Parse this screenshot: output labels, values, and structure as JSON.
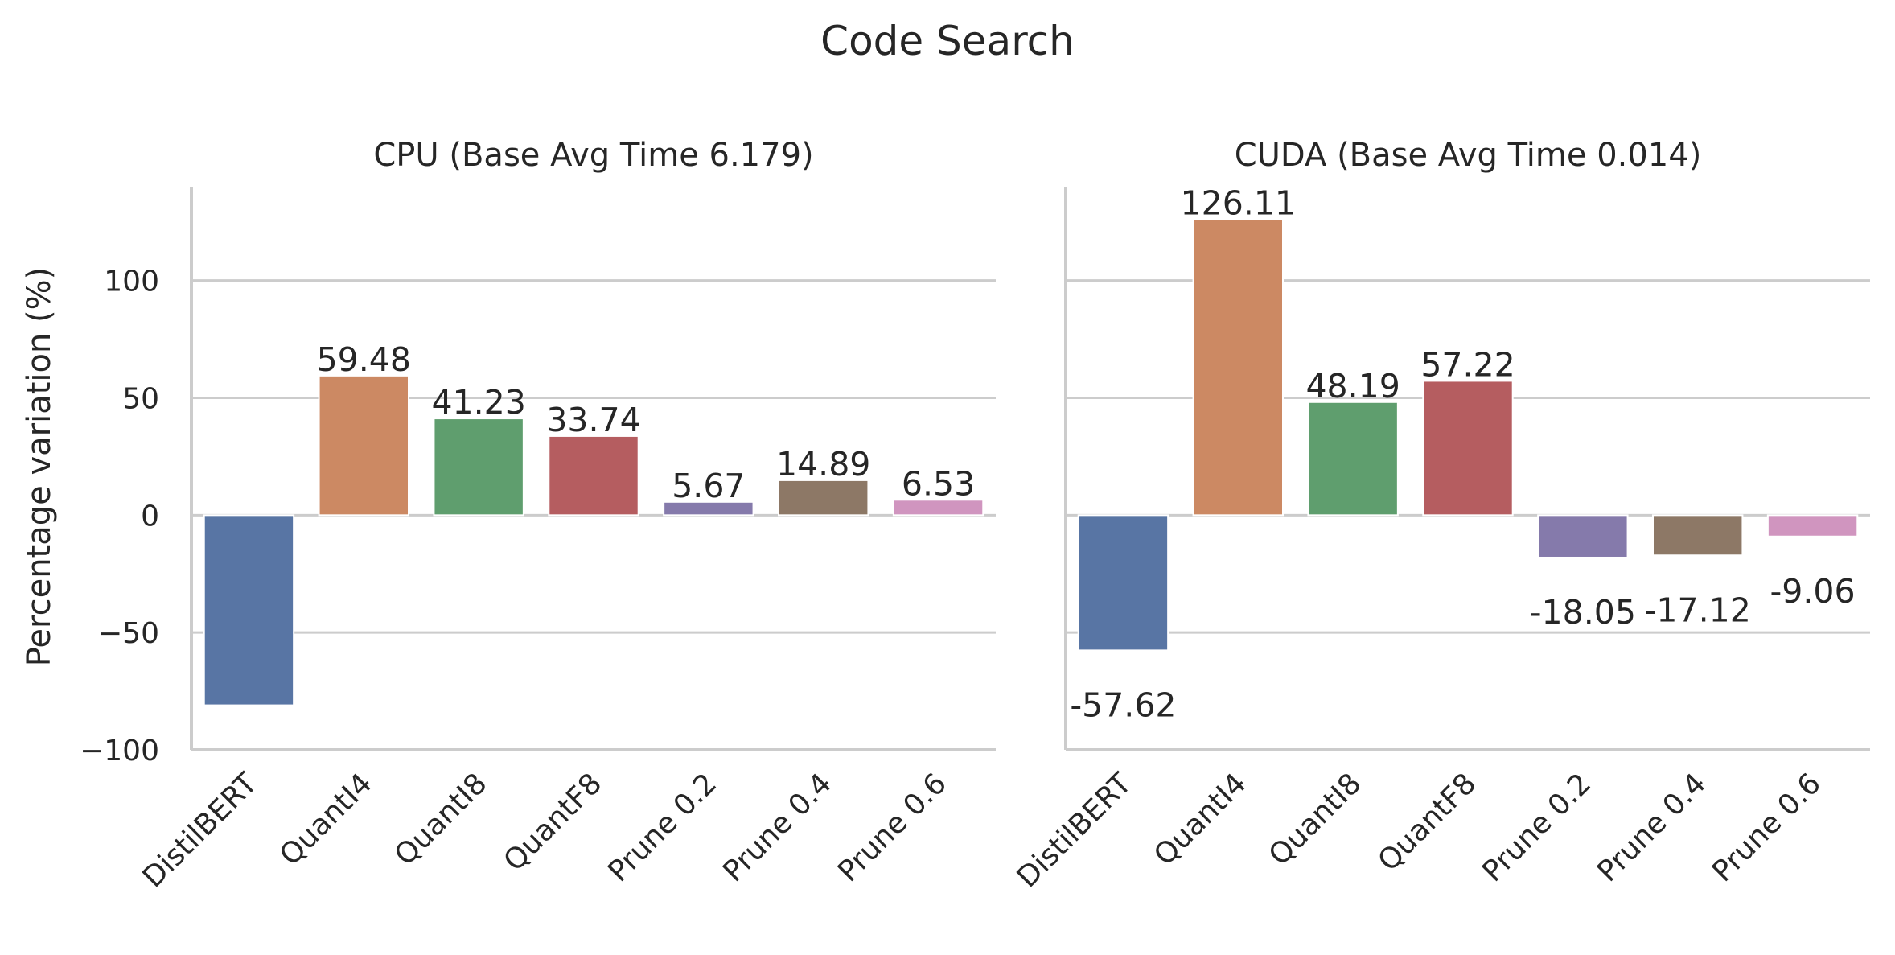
{
  "chart_data": {
    "type": "bar",
    "title": "Code Search",
    "ylabel": "Percentage variation (%)",
    "ylim": [
      -100,
      140
    ],
    "yticks": [
      -100,
      -50,
      0,
      50,
      100
    ],
    "ytick_labels": [
      "−100",
      "−50",
      "0",
      "50",
      "100"
    ],
    "grid": true,
    "categories": [
      "DistilBERT",
      "QuantI4",
      "QuantI8",
      "QuantF8",
      "Prune 0.2",
      "Prune 0.4",
      "Prune 0.6"
    ],
    "colors": [
      "#5875a4",
      "#cc8963",
      "#5f9e6e",
      "#b55d60",
      "#857aab",
      "#8d7866",
      "#d095bf"
    ],
    "panels": [
      {
        "title": "CPU (Base Avg Time 6.179)",
        "values": [
          -81.0,
          59.48,
          41.23,
          33.74,
          5.67,
          14.89,
          6.53
        ],
        "labels": [
          "",
          "59.48",
          "41.23",
          "33.74",
          "5.67",
          "14.89",
          "6.53"
        ]
      },
      {
        "title": "CUDA (Base Avg Time 0.014)",
        "values": [
          -57.62,
          126.11,
          48.19,
          57.22,
          -18.05,
          -17.12,
          -9.06
        ],
        "labels": [
          "-57.62",
          "126.11",
          "48.19",
          "57.22",
          "-18.05",
          "-17.12",
          "-9.06"
        ]
      }
    ]
  }
}
